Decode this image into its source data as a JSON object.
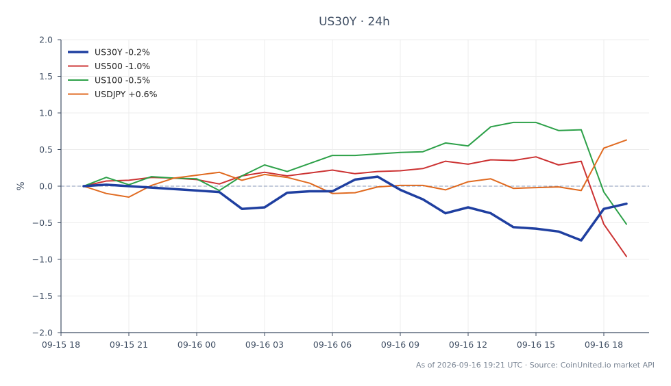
{
  "chart_data": {
    "type": "line",
    "title": "US30Y · 24h",
    "xlabel": "",
    "ylabel": "%",
    "ylim": [
      -2.0,
      2.0
    ],
    "xlim": [
      "09-15 18",
      "09-16 20"
    ],
    "grid": true,
    "legend_position": "top-left",
    "baseline": 0.0,
    "yticks": [
      "2.0",
      "1.5",
      "1.0",
      "0.5",
      "0.0",
      "−0.5",
      "−1.0",
      "−1.5",
      "−2.0"
    ],
    "ytick_values": [
      2.0,
      1.5,
      1.0,
      0.5,
      0.0,
      -0.5,
      -1.0,
      -1.5,
      -2.0
    ],
    "xticks": [
      "09-15 18",
      "09-15 21",
      "09-16 00",
      "09-16 03",
      "09-16 06",
      "09-16 09",
      "09-16 12",
      "09-16 15",
      "09-16 18"
    ],
    "x": [
      "09-15 19",
      "09-15 20",
      "09-15 21",
      "09-15 22",
      "09-15 23",
      "09-16 00",
      "09-16 01",
      "09-16 02",
      "09-16 03",
      "09-16 04",
      "09-16 05",
      "09-16 06",
      "09-16 07",
      "09-16 08",
      "09-16 09",
      "09-16 10",
      "09-16 11",
      "09-16 12",
      "09-16 13",
      "09-16 14",
      "09-16 15",
      "09-16 16",
      "09-16 17",
      "09-16 18",
      "09-16 19"
    ],
    "series": [
      {
        "name": "US30Y -0.2%",
        "color": "#1f3fa0",
        "width": 3.5,
        "values": [
          0.0,
          0.02,
          0.0,
          -0.02,
          -0.04,
          -0.06,
          -0.08,
          -0.31,
          -0.29,
          -0.09,
          -0.07,
          -0.07,
          0.09,
          0.13,
          -0.05,
          -0.18,
          -0.37,
          -0.29,
          -0.37,
          -0.56,
          -0.58,
          -0.62,
          -0.74,
          -0.31,
          -0.24
        ]
      },
      {
        "name": "US500 -1.0%",
        "color": "#cc3333",
        "width": 2,
        "values": [
          0.0,
          0.07,
          0.08,
          0.12,
          0.11,
          0.09,
          0.03,
          0.14,
          0.19,
          0.14,
          0.18,
          0.22,
          0.17,
          0.2,
          0.21,
          0.24,
          0.34,
          0.3,
          0.36,
          0.35,
          0.4,
          0.29,
          0.34,
          -0.52,
          -0.96
        ]
      },
      {
        "name": "US100 -0.5%",
        "color": "#2ca048",
        "width": 2,
        "values": [
          0.0,
          0.12,
          0.02,
          0.13,
          0.11,
          0.1,
          -0.06,
          0.14,
          0.29,
          0.2,
          0.31,
          0.42,
          0.42,
          0.44,
          0.46,
          0.47,
          0.59,
          0.55,
          0.81,
          0.87,
          0.87,
          0.76,
          0.77,
          -0.08,
          -0.52
        ]
      },
      {
        "name": "USDJPY +0.6%",
        "color": "#e06a20",
        "width": 2,
        "values": [
          0.0,
          -0.1,
          -0.15,
          0.01,
          0.11,
          0.15,
          0.19,
          0.08,
          0.16,
          0.12,
          0.04,
          -0.1,
          -0.09,
          -0.01,
          0.01,
          0.01,
          -0.05,
          0.06,
          0.1,
          -0.03,
          -0.02,
          -0.01,
          -0.06,
          0.52,
          0.63
        ]
      }
    ]
  },
  "footer": "As of 2026-09-16 19:21 UTC · Source: CoinUnited.io market API"
}
